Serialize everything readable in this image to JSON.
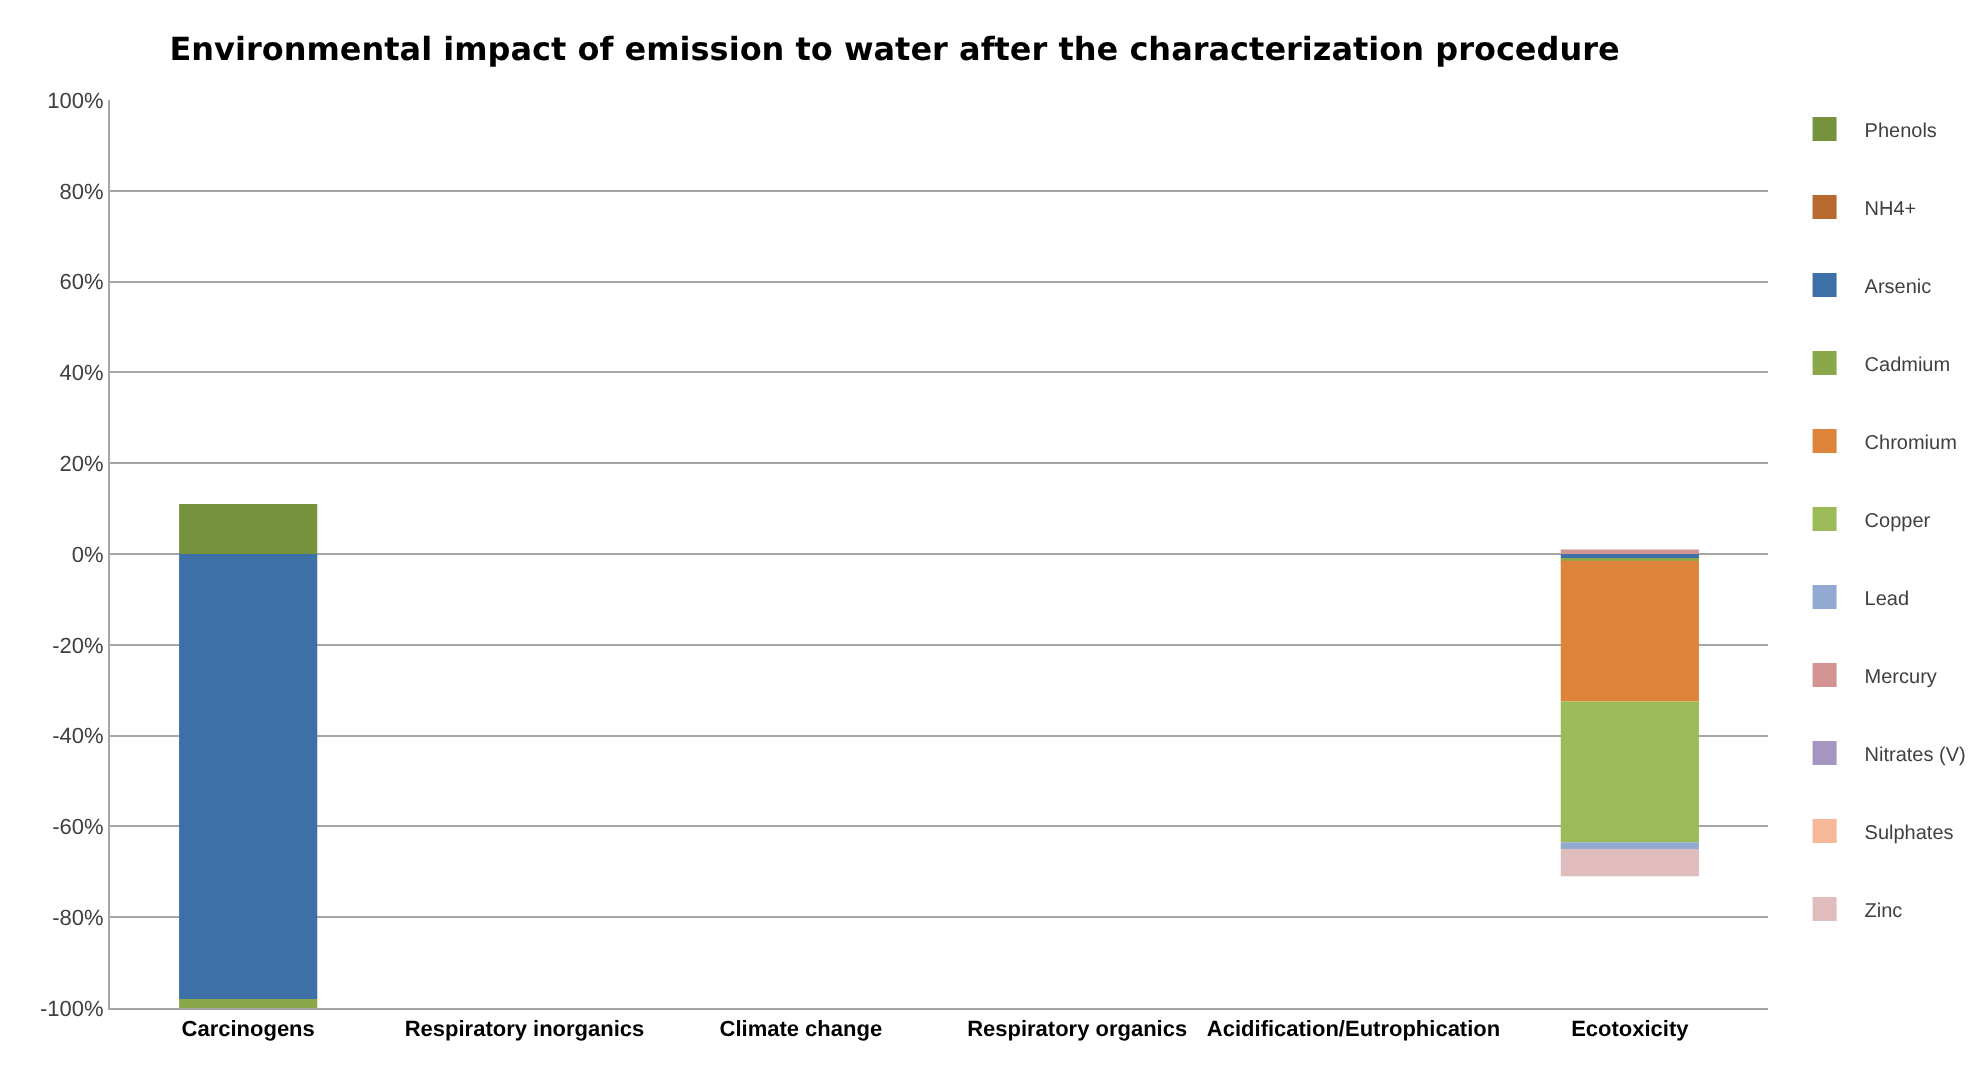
{
  "chart_data": {
    "type": "bar",
    "title": "Environmental impact of emission to water after the characterization procedure",
    "categories": [
      "Carcinogens",
      "Respiratory inorganics",
      "Climate change",
      "Respiratory organics",
      "Acidification/Eutrophication",
      "Ecotoxicity"
    ],
    "stacked": true,
    "ylim": [
      -100,
      100
    ],
    "yticks": [
      {
        "value": -100,
        "label": "-100%"
      },
      {
        "value": -80,
        "label": "-80%"
      },
      {
        "value": -60,
        "label": "-60%"
      },
      {
        "value": -40,
        "label": "-40%"
      },
      {
        "value": -20,
        "label": "-20%"
      },
      {
        "value": 0,
        "label": "0%"
      },
      {
        "value": 20,
        "label": "20%"
      },
      {
        "value": 40,
        "label": "40%"
      },
      {
        "value": 60,
        "label": "60%"
      },
      {
        "value": 80,
        "label": "80%"
      },
      {
        "value": 100,
        "label": "100%"
      }
    ],
    "grid": "y",
    "legend": "right",
    "series": [
      {
        "name": "Phenols",
        "color": "#76923c",
        "values": [
          11,
          null,
          null,
          null,
          null,
          null
        ]
      },
      {
        "name": "NH4+",
        "color": "#b8692d",
        "values": [
          null,
          null,
          null,
          null,
          null,
          null
        ]
      },
      {
        "name": "Arsenic",
        "color": "#3e70a8",
        "values": [
          -98,
          null,
          null,
          null,
          null,
          -1
        ]
      },
      {
        "name": "Cadmium",
        "color": "#8aa84a",
        "values": [
          -2,
          null,
          null,
          null,
          null,
          -0.5
        ]
      },
      {
        "name": "Chromium",
        "color": "#dd843a",
        "values": [
          null,
          null,
          null,
          null,
          null,
          -31
        ]
      },
      {
        "name": "Copper",
        "color": "#9bbb59",
        "values": [
          null,
          null,
          null,
          null,
          null,
          -31
        ]
      },
      {
        "name": "Lead",
        "color": "#92a9d2",
        "values": [
          null,
          null,
          null,
          null,
          null,
          -1.5
        ]
      },
      {
        "name": "Mercury",
        "color": "#d49393",
        "values": [
          null,
          null,
          null,
          null,
          null,
          1
        ]
      },
      {
        "name": "Nitrates (V)",
        "color": "#a496c0",
        "values": [
          null,
          null,
          null,
          null,
          null,
          null
        ]
      },
      {
        "name": "Sulphates",
        "color": "#f5b999",
        "values": [
          null,
          null,
          null,
          null,
          null,
          null
        ]
      },
      {
        "name": "Zinc",
        "color": "#e0bcbc",
        "values": [
          null,
          null,
          null,
          null,
          null,
          -6
        ]
      }
    ]
  }
}
